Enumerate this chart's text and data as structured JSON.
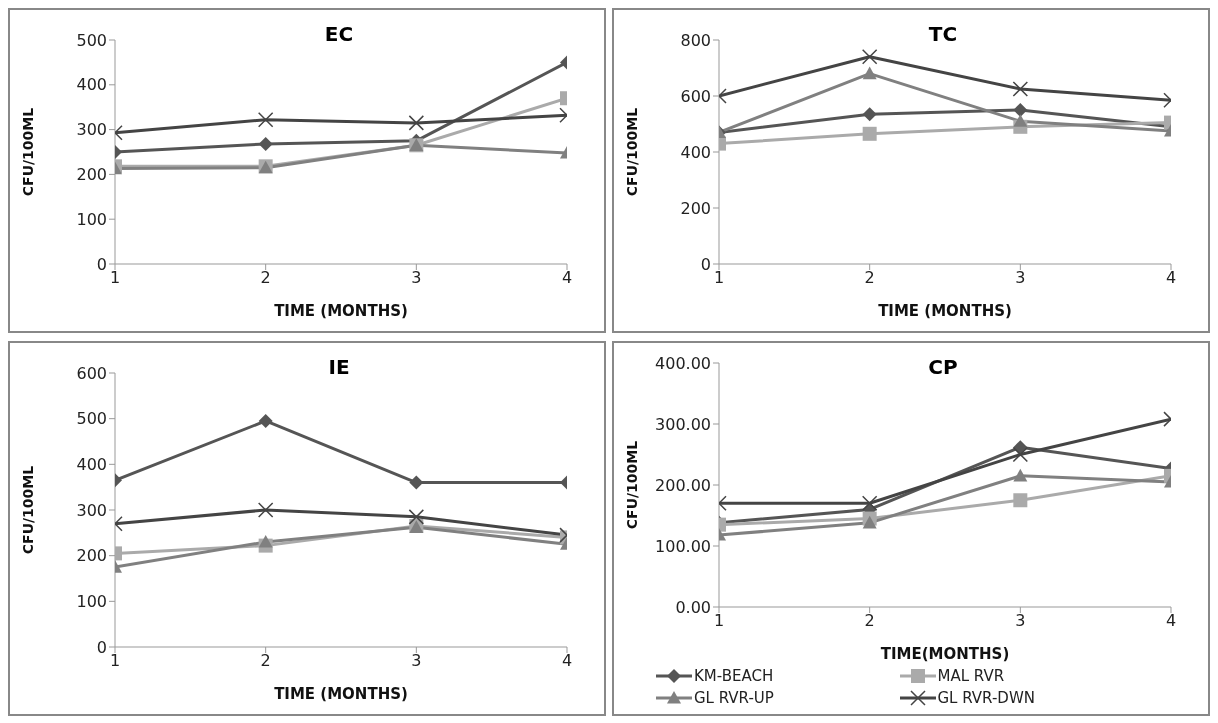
{
  "chart_data": [
    {
      "type": "line",
      "title": "EC",
      "xlabel": "TIME (MONTHS)",
      "ylabel": "CFU/100ML",
      "x": [
        1,
        2,
        3,
        4
      ],
      "xlim": [
        1,
        4
      ],
      "xticks": [
        1,
        2,
        3,
        4
      ],
      "ylim": [
        0,
        500
      ],
      "yticks": [
        0,
        100,
        200,
        300,
        400,
        500
      ],
      "legend": false,
      "series": [
        {
          "color": "#555555",
          "marker": "diamond",
          "values": [
            250,
            268,
            275,
            450
          ]
        },
        {
          "color": "#aaaaaa",
          "marker": "square",
          "values": [
            218,
            218,
            265,
            370
          ]
        },
        {
          "color": "#808080",
          "marker": "triangle",
          "values": [
            213,
            215,
            265,
            248
          ]
        },
        {
          "color": "#444444",
          "marker": "cross",
          "values": [
            293,
            322,
            315,
            332
          ]
        }
      ]
    },
    {
      "type": "line",
      "title": "TC",
      "xlabel": "TIME (MONTHS)",
      "ylabel": "CFU/100ML",
      "x": [
        1,
        2,
        3,
        4
      ],
      "xlim": [
        1,
        4
      ],
      "xticks": [
        1,
        2,
        3,
        4
      ],
      "ylim": [
        0,
        800
      ],
      "yticks": [
        0,
        200,
        400,
        600,
        800
      ],
      "legend": false,
      "series": [
        {
          "color": "#555555",
          "marker": "diamond",
          "values": [
            470,
            535,
            550,
            490
          ]
        },
        {
          "color": "#aaaaaa",
          "marker": "square",
          "values": [
            430,
            465,
            490,
            505
          ]
        },
        {
          "color": "#808080",
          "marker": "triangle",
          "values": [
            470,
            680,
            510,
            475
          ]
        },
        {
          "color": "#444444",
          "marker": "cross",
          "values": [
            600,
            740,
            625,
            585
          ]
        }
      ]
    },
    {
      "type": "line",
      "title": "IE",
      "xlabel": "TIME (MONTHS)",
      "ylabel": "CFU/100ML",
      "x": [
        1,
        2,
        3,
        4
      ],
      "xlim": [
        1,
        4
      ],
      "xticks": [
        1,
        2,
        3,
        4
      ],
      "ylim": [
        0,
        600
      ],
      "yticks": [
        0,
        100,
        200,
        300,
        400,
        500,
        600
      ],
      "legend": false,
      "series": [
        {
          "color": "#555555",
          "marker": "diamond",
          "values": [
            365,
            495,
            360,
            360
          ]
        },
        {
          "color": "#aaaaaa",
          "marker": "square",
          "values": [
            205,
            222,
            265,
            240
          ]
        },
        {
          "color": "#808080",
          "marker": "triangle",
          "values": [
            175,
            230,
            262,
            225
          ]
        },
        {
          "color": "#444444",
          "marker": "cross",
          "values": [
            270,
            300,
            285,
            245
          ]
        }
      ]
    },
    {
      "type": "line",
      "title": "CP",
      "xlabel": "TIME(MONTHS)",
      "ylabel": "CFU/100ML",
      "x": [
        1,
        2,
        3,
        4
      ],
      "xlim": [
        1,
        4
      ],
      "xticks": [
        1,
        2,
        3,
        4
      ],
      "ylim": [
        0,
        400
      ],
      "yticks": [
        {
          "value": 0,
          "label": "0.00"
        },
        {
          "value": 100,
          "label": "100.00"
        },
        {
          "value": 200,
          "label": "200.00"
        },
        {
          "value": 300,
          "label": "300.00"
        },
        {
          "value": 400,
          "label": "400.00"
        }
      ],
      "legend": "bottom",
      "series": [
        {
          "name": "KM-BEACH",
          "color": "#555555",
          "marker": "diamond",
          "values": [
            138,
            160,
            262,
            227
          ]
        },
        {
          "name": "MAL RVR",
          "color": "#aaaaaa",
          "marker": "square",
          "values": [
            135,
            145,
            175,
            215
          ]
        },
        {
          "name": "GL RVR-UP",
          "color": "#808080",
          "marker": "triangle",
          "values": [
            118,
            138,
            215,
            205
          ]
        },
        {
          "name": "GL RVR-DWN",
          "color": "#444444",
          "marker": "cross",
          "values": [
            170,
            170,
            250,
            308
          ]
        }
      ]
    }
  ]
}
